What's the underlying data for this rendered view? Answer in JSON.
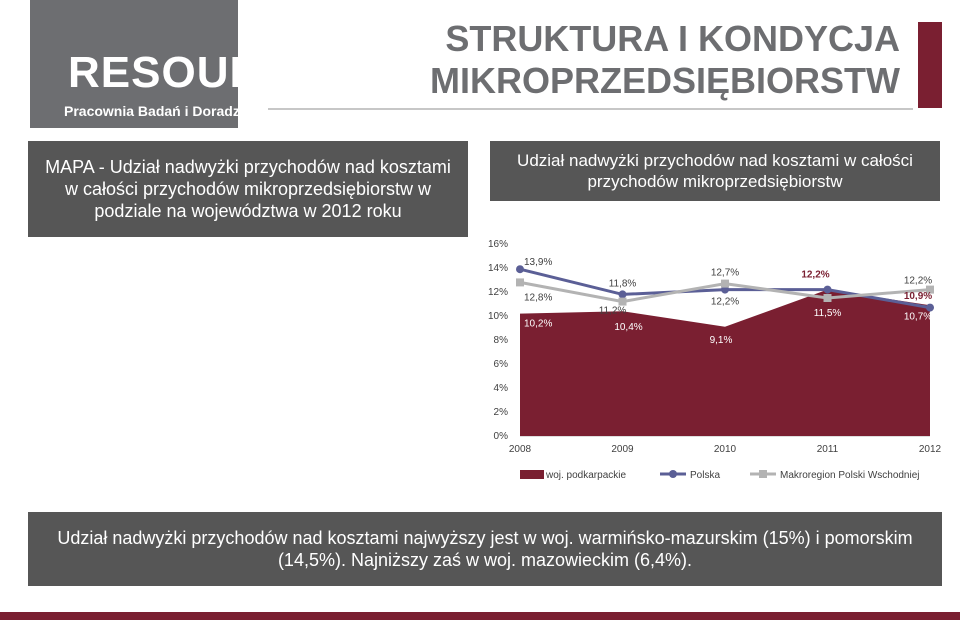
{
  "logo": {
    "brand_re": "RE",
    "brand_source": "SOURCE",
    "tagline": "Pracownia Badań i Doradztwa"
  },
  "page": {
    "title": "STRUKTURA I KONDYCJA MIKROPRZEDSIĘBIORSTW"
  },
  "map_box": {
    "text": "MAPA - Udział nadwyżki przychodów nad kosztami w całości przychodów mikroprzedsiębiorstw w podziale na województwa w 2012 roku"
  },
  "chart_header": {
    "text": "Udział nadwyżki przychodów nad kosztami w całości przychodów mikroprzedsiębiorstw"
  },
  "summary": {
    "text": "Udział nadwyżki przychodów nad kosztami  najwyższy jest w woj. warmińsko-mazurskim (15%) i pomorskim (14,5%). Najniższy zaś w woj. mazowieckim (6,4%)."
  },
  "colors": {
    "accent": "#7a1f31",
    "panel": "#565656",
    "polska": "#5b5f96",
    "makroregion": "#b3b3b3"
  },
  "chart_data": {
    "type": "area",
    "categories": [
      "2008",
      "2009",
      "2010",
      "2011",
      "2012"
    ],
    "ylim": [
      0,
      16
    ],
    "yticks": [
      "0%",
      "2%",
      "4%",
      "6%",
      "8%",
      "10%",
      "12%",
      "14%",
      "16%"
    ],
    "grid": false,
    "legend_position": "bottom",
    "series": [
      {
        "name": "woj. podkarpackie",
        "kind": "area",
        "color": "#7a1f31",
        "values": [
          10.2,
          10.4,
          9.1,
          12.2,
          10.9
        ],
        "labels": [
          "10,2%",
          "10,4%",
          "9,1%",
          "12,2%",
          "10,9%"
        ]
      },
      {
        "name": "Polska",
        "kind": "line",
        "color": "#5b5f96",
        "values": [
          13.9,
          11.8,
          12.2,
          12.2,
          10.7
        ],
        "labels": [
          "13,9%",
          "11,8%",
          "12,2%",
          "12,2%",
          "10,7%"
        ]
      },
      {
        "name": "Makroregion Polski Wschodniej",
        "kind": "line",
        "color": "#b3b3b3",
        "values": [
          12.8,
          11.2,
          12.7,
          11.5,
          12.2
        ],
        "labels": [
          "12,8%",
          "11,2%",
          "12,7%",
          "11,5%",
          "12,2%"
        ]
      }
    ]
  }
}
